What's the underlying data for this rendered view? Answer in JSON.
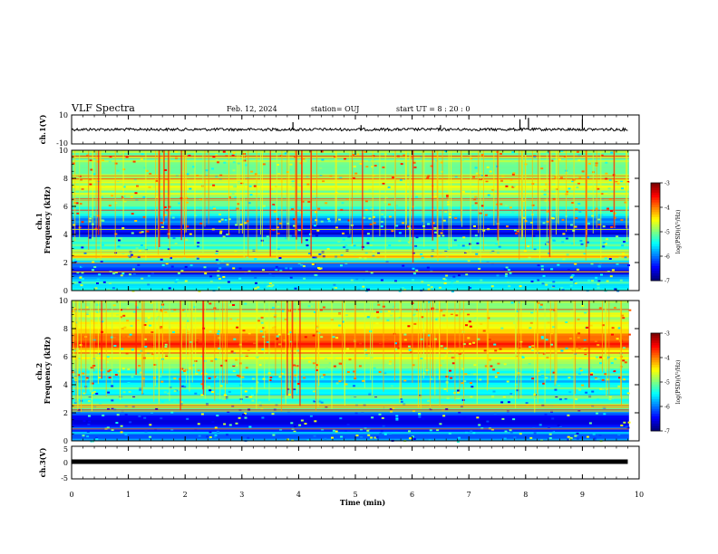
{
  "header": {
    "title": "VLF Spectra",
    "date": "Feb. 12, 2024",
    "station": "station= OUJ",
    "start_ut": "start  UT =   8  : 20 : 0"
  },
  "colors": {
    "trace": "#000000",
    "frame": "#000000"
  },
  "chart_data": [
    {
      "type": "line",
      "name": "ch1-waveform",
      "ylabel": "ch.1(V)",
      "ylim": [
        -10,
        10
      ],
      "ytick_labels": [
        "10",
        "-10"
      ],
      "x": [
        0,
        1,
        2,
        3,
        4,
        5,
        6,
        7,
        8,
        9,
        9.8
      ],
      "values": [
        0,
        0,
        0,
        0,
        0,
        0,
        0,
        0,
        0,
        0,
        0
      ],
      "spikes_x": [
        3.9,
        5.1,
        6.5,
        7.9,
        8.05,
        9.0
      ],
      "spikes_y": [
        5,
        3,
        3,
        7,
        8,
        7
      ]
    },
    {
      "type": "heatmap",
      "name": "ch1-spectrogram",
      "ylabel": "ch.1 Frequency (kHz)",
      "ylim": [
        0,
        10
      ],
      "xlim": [
        0,
        10
      ],
      "ytick_labels": [
        "0",
        "2",
        "4",
        "6",
        "8",
        "10"
      ],
      "colorbar_label": "log(PSD)(V²/Hz)",
      "colorbar_range": [
        -7,
        -3
      ],
      "colorbar_ticks": [
        "-3",
        "-4",
        "-5",
        "-6",
        "-7"
      ],
      "grid": false,
      "band_levels_khz": [
        0.5,
        1.2,
        1.8,
        2.3,
        2.6,
        3.0,
        3.3,
        3.6,
        4.0,
        4.5,
        5.0,
        5.5,
        6.2,
        6.9,
        7.5,
        8.0
      ],
      "band_psd": [
        -5.5,
        -6.5,
        -6.3,
        -4.5,
        -5.0,
        -5.2,
        -5.5,
        -5.0,
        -6.8,
        -6.5,
        -5.8,
        -5.3,
        -5.0,
        -4.9,
        -4.7,
        -5.0
      ]
    },
    {
      "type": "heatmap",
      "name": "ch2-spectrogram",
      "ylabel": "ch.2 Frequency (kHz)",
      "ylim": [
        0,
        10
      ],
      "xlim": [
        0,
        10
      ],
      "ytick_labels": [
        "0",
        "2",
        "4",
        "6",
        "8",
        "10"
      ],
      "colorbar_label": "log(PSD)(V²/Hz)",
      "colorbar_range": [
        -7,
        -3
      ],
      "colorbar_ticks": [
        "-3",
        "-4",
        "-5",
        "-6",
        "-7"
      ],
      "grid": false,
      "band_levels_khz": [
        0.5,
        1.2,
        1.8,
        2.3,
        2.6,
        3.0,
        3.6,
        4.2,
        5.0,
        5.6,
        6.3,
        6.8,
        7.3,
        7.9,
        8.5,
        9.2
      ],
      "band_psd": [
        -6.0,
        -6.5,
        -6.2,
        -4.8,
        -5.2,
        -5.5,
        -5.3,
        -5.6,
        -5.2,
        -4.9,
        -4.4,
        -3.8,
        -4.0,
        -4.2,
        -4.6,
        -4.8
      ]
    },
    {
      "type": "line",
      "name": "ch3-waveform",
      "ylabel": "ch.3(V)",
      "ylim": [
        -5,
        5
      ],
      "ytick_labels": [
        "5",
        "0",
        "-5"
      ],
      "x": [
        0,
        9.8
      ],
      "values": [
        0,
        0
      ]
    }
  ],
  "xaxis": {
    "label": "Time (min)",
    "xlim": [
      0,
      10
    ],
    "tick_labels": [
      "0",
      "1",
      "2",
      "3",
      "4",
      "5",
      "6",
      "7",
      "8",
      "9",
      "10"
    ]
  }
}
